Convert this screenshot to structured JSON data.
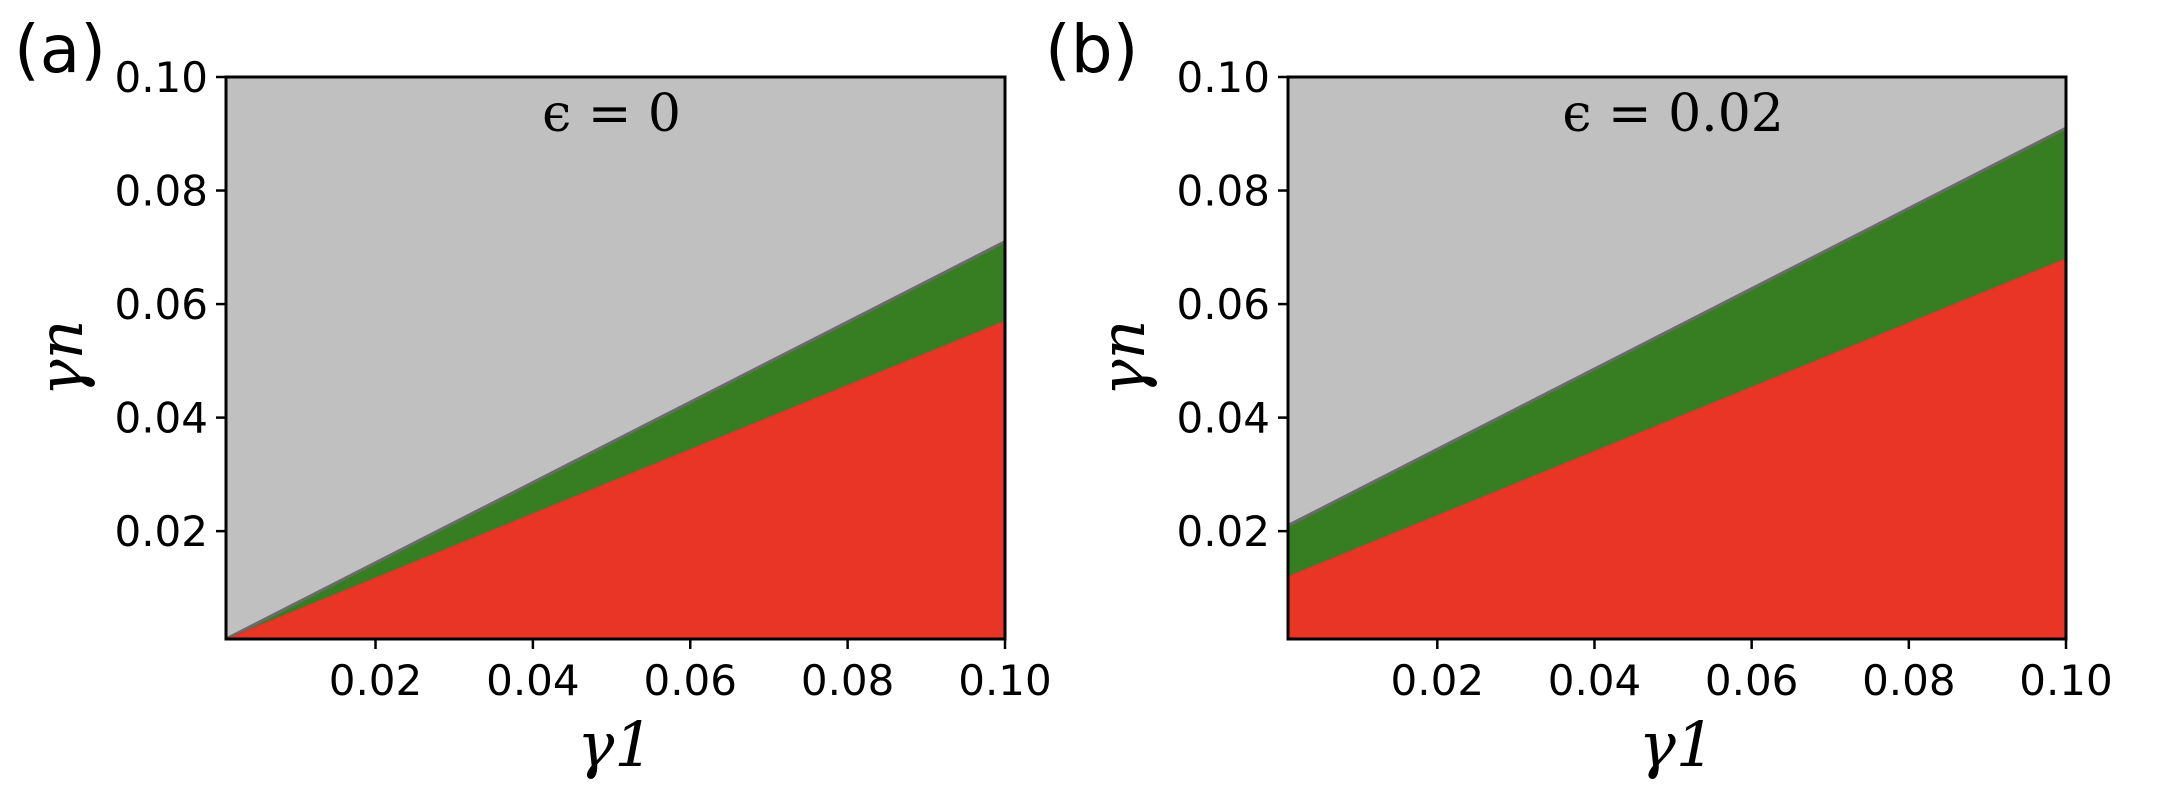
{
  "colors": {
    "gray": "#c0c0c0",
    "green": "#377e22",
    "red": "#e83525",
    "boundary": "#6b6b6b"
  },
  "chart_data": [
    {
      "type": "area",
      "panel_label": "(a)",
      "annotation": "ϵ = 0",
      "xlabel": "γ1",
      "ylabel": "γn",
      "xlim": [
        0.001,
        0.1
      ],
      "ylim": [
        0.001,
        0.1
      ],
      "xticks": [
        0.02,
        0.04,
        0.06,
        0.08,
        0.1
      ],
      "yticks": [
        0.02,
        0.04,
        0.06,
        0.08,
        0.1
      ],
      "xtick_labels": [
        "0.02",
        "0.04",
        "0.06",
        "0.08",
        "0.10"
      ],
      "ytick_labels": [
        "0.02",
        "0.04",
        "0.06",
        "0.08",
        "0.10"
      ],
      "regions": [
        {
          "color": "gray",
          "description": "above upper boundary"
        },
        {
          "color": "green",
          "description": "between boundaries"
        },
        {
          "color": "red",
          "description": "below lower boundary"
        }
      ],
      "upper_boundary": {
        "x": [
          0.001,
          0.1
        ],
        "y": [
          0.001,
          0.071
        ]
      },
      "lower_boundary": {
        "x": [
          0.001,
          0.1
        ],
        "y": [
          0.001,
          0.057
        ]
      }
    },
    {
      "type": "area",
      "panel_label": "(b)",
      "annotation": "ϵ = 0.02",
      "xlabel": "γ1",
      "ylabel": "γn",
      "xlim": [
        0.001,
        0.1
      ],
      "ylim": [
        0.001,
        0.1
      ],
      "xticks": [
        0.02,
        0.04,
        0.06,
        0.08,
        0.1
      ],
      "yticks": [
        0.02,
        0.04,
        0.06,
        0.08,
        0.1
      ],
      "xtick_labels": [
        "0.02",
        "0.04",
        "0.06",
        "0.08",
        "0.10"
      ],
      "ytick_labels": [
        "0.02",
        "0.04",
        "0.06",
        "0.08",
        "0.10"
      ],
      "regions": [
        {
          "color": "gray",
          "description": "above upper boundary"
        },
        {
          "color": "green",
          "description": "between boundaries"
        },
        {
          "color": "red",
          "description": "below lower boundary"
        }
      ],
      "upper_boundary": {
        "x": [
          0.001,
          0.1
        ],
        "y": [
          0.021,
          0.091
        ]
      },
      "lower_boundary": {
        "x": [
          0.001,
          0.1
        ],
        "y": [
          0.012,
          0.068
        ]
      }
    }
  ]
}
